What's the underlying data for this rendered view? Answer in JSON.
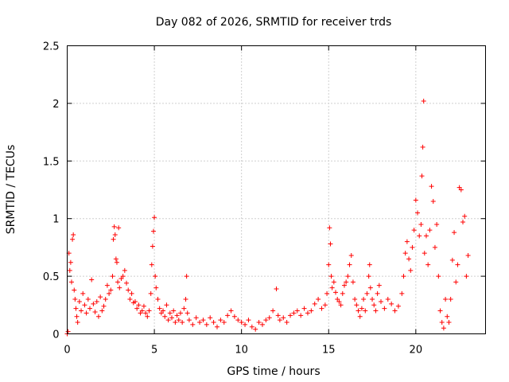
{
  "chart_data": {
    "type": "scatter",
    "title": "Day 082 of 2026, SRMTID for receiver trds",
    "xlabel": "GPS time / hours",
    "ylabel": "SRMTID / TECUs",
    "xlim": [
      0,
      24
    ],
    "ylim": [
      0,
      2.5
    ],
    "x_ticks": [
      0,
      5,
      10,
      15,
      20
    ],
    "y_ticks": [
      0,
      0.5,
      1,
      1.5,
      2,
      2.5
    ],
    "x_tick_labels": [
      "0",
      "5",
      "10",
      "15",
      "20"
    ],
    "y_tick_labels": [
      "0",
      "0.5",
      "1",
      "1.5",
      "2",
      "2.5"
    ],
    "grid": true,
    "marker": "plus",
    "series": [
      {
        "name": "SRMTID",
        "color": "#ff0000",
        "points": [
          [
            0.0,
            0.0
          ],
          [
            0.05,
            0.02
          ],
          [
            0.1,
            0.7
          ],
          [
            0.15,
            0.55
          ],
          [
            0.2,
            0.62
          ],
          [
            0.25,
            0.45
          ],
          [
            0.3,
            0.82
          ],
          [
            0.35,
            0.86
          ],
          [
            0.4,
            0.38
          ],
          [
            0.45,
            0.3
          ],
          [
            0.5,
            0.22
          ],
          [
            0.55,
            0.15
          ],
          [
            0.6,
            0.1
          ],
          [
            0.7,
            0.28
          ],
          [
            0.8,
            0.2
          ],
          [
            0.9,
            0.35
          ],
          [
            1.0,
            0.25
          ],
          [
            1.1,
            0.18
          ],
          [
            1.2,
            0.3
          ],
          [
            1.3,
            0.22
          ],
          [
            1.4,
            0.47
          ],
          [
            1.5,
            0.26
          ],
          [
            1.6,
            0.19
          ],
          [
            1.7,
            0.28
          ],
          [
            1.8,
            0.15
          ],
          [
            1.9,
            0.32
          ],
          [
            2.0,
            0.2
          ],
          [
            2.1,
            0.24
          ],
          [
            2.2,
            0.3
          ],
          [
            2.3,
            0.42
          ],
          [
            2.4,
            0.35
          ],
          [
            2.5,
            0.38
          ],
          [
            2.6,
            0.5
          ],
          [
            2.65,
            0.82
          ],
          [
            2.7,
            0.93
          ],
          [
            2.75,
            0.86
          ],
          [
            2.8,
            0.65
          ],
          [
            2.85,
            0.62
          ],
          [
            2.9,
            0.45
          ],
          [
            2.95,
            0.92
          ],
          [
            3.0,
            0.4
          ],
          [
            3.1,
            0.48
          ],
          [
            3.2,
            0.5
          ],
          [
            3.3,
            0.55
          ],
          [
            3.4,
            0.44
          ],
          [
            3.5,
            0.38
          ],
          [
            3.6,
            0.3
          ],
          [
            3.7,
            0.35
          ],
          [
            3.8,
            0.27
          ],
          [
            3.9,
            0.28
          ],
          [
            4.0,
            0.22
          ],
          [
            4.1,
            0.25
          ],
          [
            4.2,
            0.18
          ],
          [
            4.3,
            0.2
          ],
          [
            4.4,
            0.24
          ],
          [
            4.5,
            0.18
          ],
          [
            4.6,
            0.15
          ],
          [
            4.7,
            0.2
          ],
          [
            4.8,
            0.35
          ],
          [
            4.85,
            0.6
          ],
          [
            4.9,
            0.76
          ],
          [
            4.95,
            0.89
          ],
          [
            5.0,
            1.01
          ],
          [
            5.05,
            0.5
          ],
          [
            5.1,
            0.4
          ],
          [
            5.2,
            0.3
          ],
          [
            5.3,
            0.22
          ],
          [
            5.4,
            0.18
          ],
          [
            5.5,
            0.2
          ],
          [
            5.6,
            0.15
          ],
          [
            5.7,
            0.25
          ],
          [
            5.8,
            0.12
          ],
          [
            5.9,
            0.18
          ],
          [
            6.0,
            0.14
          ],
          [
            6.1,
            0.2
          ],
          [
            6.2,
            0.1
          ],
          [
            6.3,
            0.16
          ],
          [
            6.4,
            0.12
          ],
          [
            6.5,
            0.18
          ],
          [
            6.6,
            0.1
          ],
          [
            6.7,
            0.22
          ],
          [
            6.8,
            0.3
          ],
          [
            6.85,
            0.5
          ],
          [
            6.9,
            0.18
          ],
          [
            7.0,
            0.12
          ],
          [
            7.2,
            0.08
          ],
          [
            7.4,
            0.14
          ],
          [
            7.6,
            0.1
          ],
          [
            7.8,
            0.12
          ],
          [
            8.0,
            0.08
          ],
          [
            8.2,
            0.14
          ],
          [
            8.4,
            0.1
          ],
          [
            8.6,
            0.06
          ],
          [
            8.8,
            0.12
          ],
          [
            9.0,
            0.1
          ],
          [
            9.2,
            0.16
          ],
          [
            9.4,
            0.2
          ],
          [
            9.6,
            0.15
          ],
          [
            9.8,
            0.12
          ],
          [
            10.0,
            0.1
          ],
          [
            10.2,
            0.08
          ],
          [
            10.4,
            0.12
          ],
          [
            10.6,
            0.06
          ],
          [
            10.8,
            0.04
          ],
          [
            11.0,
            0.1
          ],
          [
            11.2,
            0.08
          ],
          [
            11.4,
            0.12
          ],
          [
            11.6,
            0.14
          ],
          [
            11.8,
            0.2
          ],
          [
            12.0,
            0.39
          ],
          [
            12.1,
            0.16
          ],
          [
            12.2,
            0.12
          ],
          [
            12.4,
            0.14
          ],
          [
            12.6,
            0.1
          ],
          [
            12.8,
            0.16
          ],
          [
            13.0,
            0.18
          ],
          [
            13.2,
            0.2
          ],
          [
            13.4,
            0.16
          ],
          [
            13.6,
            0.22
          ],
          [
            13.8,
            0.18
          ],
          [
            14.0,
            0.2
          ],
          [
            14.2,
            0.26
          ],
          [
            14.4,
            0.3
          ],
          [
            14.6,
            0.22
          ],
          [
            14.8,
            0.25
          ],
          [
            14.9,
            0.35
          ],
          [
            15.0,
            0.6
          ],
          [
            15.05,
            0.92
          ],
          [
            15.1,
            0.78
          ],
          [
            15.15,
            0.5
          ],
          [
            15.2,
            0.4
          ],
          [
            15.3,
            0.45
          ],
          [
            15.4,
            0.36
          ],
          [
            15.5,
            0.3
          ],
          [
            15.6,
            0.28
          ],
          [
            15.7,
            0.25
          ],
          [
            15.8,
            0.35
          ],
          [
            15.9,
            0.42
          ],
          [
            16.0,
            0.45
          ],
          [
            16.1,
            0.5
          ],
          [
            16.2,
            0.6
          ],
          [
            16.3,
            0.68
          ],
          [
            16.4,
            0.45
          ],
          [
            16.5,
            0.3
          ],
          [
            16.6,
            0.25
          ],
          [
            16.7,
            0.2
          ],
          [
            16.8,
            0.15
          ],
          [
            16.9,
            0.22
          ],
          [
            17.0,
            0.3
          ],
          [
            17.1,
            0.2
          ],
          [
            17.2,
            0.35
          ],
          [
            17.3,
            0.5
          ],
          [
            17.35,
            0.6
          ],
          [
            17.4,
            0.4
          ],
          [
            17.5,
            0.3
          ],
          [
            17.6,
            0.25
          ],
          [
            17.7,
            0.2
          ],
          [
            17.8,
            0.35
          ],
          [
            17.9,
            0.42
          ],
          [
            18.0,
            0.28
          ],
          [
            18.2,
            0.22
          ],
          [
            18.4,
            0.3
          ],
          [
            18.6,
            0.26
          ],
          [
            18.8,
            0.2
          ],
          [
            19.0,
            0.24
          ],
          [
            19.2,
            0.35
          ],
          [
            19.3,
            0.5
          ],
          [
            19.4,
            0.7
          ],
          [
            19.5,
            0.8
          ],
          [
            19.6,
            0.65
          ],
          [
            19.7,
            0.55
          ],
          [
            19.8,
            0.75
          ],
          [
            19.9,
            0.9
          ],
          [
            20.0,
            1.16
          ],
          [
            20.1,
            1.05
          ],
          [
            20.2,
            0.85
          ],
          [
            20.3,
            0.95
          ],
          [
            20.35,
            1.37
          ],
          [
            20.4,
            1.62
          ],
          [
            20.45,
            2.02
          ],
          [
            20.5,
            0.7
          ],
          [
            20.6,
            0.85
          ],
          [
            20.7,
            0.6
          ],
          [
            20.8,
            0.9
          ],
          [
            20.9,
            1.28
          ],
          [
            21.0,
            1.15
          ],
          [
            21.1,
            0.75
          ],
          [
            21.2,
            0.95
          ],
          [
            21.3,
            0.5
          ],
          [
            21.4,
            0.2
          ],
          [
            21.5,
            0.1
          ],
          [
            21.6,
            0.05
          ],
          [
            21.7,
            0.3
          ],
          [
            21.8,
            0.15
          ],
          [
            21.9,
            0.1
          ],
          [
            22.0,
            0.3
          ],
          [
            22.1,
            0.64
          ],
          [
            22.2,
            0.88
          ],
          [
            22.3,
            0.45
          ],
          [
            22.4,
            0.6
          ],
          [
            22.5,
            1.27
          ],
          [
            22.6,
            1.25
          ],
          [
            22.7,
            0.97
          ],
          [
            22.8,
            1.02
          ],
          [
            22.9,
            0.5
          ],
          [
            23.0,
            0.68
          ]
        ]
      }
    ]
  }
}
